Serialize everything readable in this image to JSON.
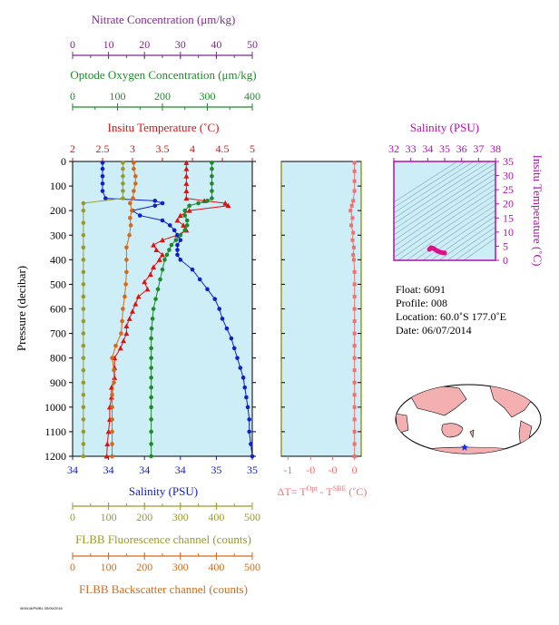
{
  "colors": {
    "plot_bg": "#cdeef7",
    "nitrate": "#7a2a8a",
    "oxygen": "#1e8a2a",
    "temperature": "#e01010",
    "salinity": "#1020c8",
    "fluorescence": "#9a9a2a",
    "backscatter": "#d26a1a",
    "delta_t": "#f07070",
    "ts_salinity": "#b010b0",
    "ts_points": "#e0108a",
    "map_land": "#f4b0b0",
    "map_ocean": "#ffffff",
    "float_marker": "#1030e0"
  },
  "labels": {
    "nitrate_axis": "Nitrate Concentration (μm/kg)",
    "oxygen_axis": "Optode Oxygen Concentration (μm/kg)",
    "temp_axis": "Insitu Temperature (˚C)",
    "salinity_axis": "Salinity (PSU)",
    "fluor_axis": "FLBB Fluorescence channel (counts)",
    "backscatter_axis": "FLBB Backscatter channel (counts)",
    "pressure_axis": "Pressure (decibar)",
    "delta_t_main": "ΔT= T",
    "delta_t_sup1": "Opt",
    "delta_t_mid": " - T",
    "delta_t_sup2": "SBE",
    "delta_t_unit": " (˚C)",
    "ts_salinity_axis": "Salinity (PSU)",
    "ts_temp_axis": "Insitu Temperature (˚C)"
  },
  "info": {
    "float": "Float:  6091",
    "profile": "Profile:  008",
    "location": "Location:  60.0˚S  177.0˚E",
    "date": "Date:  06/07/2014"
  },
  "footer": "/6091/8/PWBL 05/09/2016",
  "chart_data": [
    {
      "type": "line",
      "name": "main-profile",
      "y_axis": {
        "label": "Pressure (decibar)",
        "range": [
          1200,
          0
        ],
        "ticks": [
          0,
          100,
          200,
          300,
          400,
          500,
          600,
          700,
          800,
          900,
          1000,
          1100,
          1200
        ]
      },
      "axes": {
        "nitrate": {
          "range": [
            0,
            50
          ],
          "ticks": [
            "0",
            "10",
            "20",
            "30",
            "40",
            "50"
          ]
        },
        "oxygen": {
          "range": [
            0,
            400
          ],
          "ticks": [
            "0",
            "100",
            "200",
            "300",
            "400"
          ]
        },
        "temperature": {
          "range": [
            2,
            5
          ],
          "ticks": [
            "2",
            "2.5",
            "3",
            "3.5",
            "4",
            "4.5",
            "5"
          ]
        },
        "salinity": {
          "range": [
            33.9,
            35.1
          ],
          "ticks": [
            "34",
            "34",
            "34",
            "34",
            "35",
            "35"
          ]
        },
        "fluorescence": {
          "range": [
            0,
            500
          ],
          "ticks": [
            "0",
            "100",
            "200",
            "300",
            "400",
            "500"
          ]
        },
        "backscatter": {
          "range": [
            0,
            500
          ],
          "ticks": [
            "0",
            "100",
            "200",
            "300",
            "400",
            "500"
          ]
        }
      },
      "series": [
        {
          "key": "temperature",
          "pressure": [
            5,
            30,
            60,
            90,
            120,
            150,
            160,
            170,
            180,
            200,
            220,
            240,
            260,
            280,
            300,
            320,
            340,
            360,
            380,
            400,
            430,
            460,
            490,
            520,
            550,
            580,
            610,
            640,
            670,
            700,
            730,
            760,
            800,
            840,
            880,
            920,
            960,
            1000,
            1050,
            1100,
            1150,
            1200
          ],
          "values": [
            3.9,
            3.9,
            3.9,
            3.9,
            3.9,
            3.9,
            4.2,
            4.55,
            4.6,
            3.95,
            3.8,
            3.75,
            3.85,
            3.9,
            3.75,
            3.5,
            3.35,
            3.4,
            3.5,
            3.45,
            3.35,
            3.3,
            3.2,
            3.25,
            3.1,
            3.05,
            3.0,
            2.95,
            2.9,
            2.9,
            2.85,
            2.8,
            2.7,
            2.7,
            2.7,
            2.65,
            2.65,
            2.62,
            2.62,
            2.6,
            2.58,
            2.57
          ]
        },
        {
          "key": "salinity",
          "pressure": [
            5,
            30,
            60,
            90,
            120,
            150,
            160,
            170,
            180,
            200,
            220,
            240,
            260,
            280,
            300,
            320,
            340,
            360,
            380,
            400,
            440,
            480,
            520,
            560,
            600,
            640,
            680,
            720,
            760,
            800,
            840,
            880,
            920,
            960,
            1000,
            1050,
            1100,
            1150,
            1200
          ],
          "values": [
            34.1,
            34.1,
            34.1,
            34.1,
            34.1,
            34.12,
            34.45,
            34.5,
            34.45,
            34.3,
            34.35,
            34.5,
            34.55,
            34.58,
            34.6,
            34.62,
            34.6,
            34.6,
            34.6,
            34.62,
            34.7,
            34.75,
            34.8,
            34.85,
            34.88,
            34.9,
            34.93,
            34.96,
            34.98,
            35.0,
            35.02,
            35.04,
            35.05,
            35.06,
            35.07,
            35.08,
            35.08,
            35.09,
            35.1
          ]
        },
        {
          "key": "oxygen",
          "pressure": [
            5,
            30,
            60,
            90,
            120,
            150,
            160,
            170,
            180,
            200,
            220,
            240,
            260,
            280,
            300,
            320,
            340,
            360,
            380,
            400,
            440,
            480,
            520,
            560,
            600,
            640,
            680,
            720,
            760,
            800,
            840,
            880,
            920,
            960,
            1000,
            1050,
            1100,
            1150,
            1200
          ],
          "values": [
            310,
            310,
            310,
            310,
            310,
            310,
            300,
            280,
            260,
            250,
            250,
            255,
            255,
            250,
            240,
            230,
            220,
            215,
            210,
            205,
            200,
            195,
            190,
            185,
            180,
            178,
            176,
            175,
            175,
            175,
            175,
            175,
            175,
            175,
            175,
            175,
            175,
            175,
            175
          ]
        },
        {
          "key": "fluorescence",
          "pressure": [
            5,
            30,
            60,
            90,
            120,
            150,
            170,
            200,
            250,
            300,
            350,
            400,
            450,
            500,
            550,
            600,
            650,
            700,
            750,
            800,
            850,
            900,
            950,
            1000,
            1050,
            1100,
            1150,
            1200
          ],
          "values": [
            140,
            140,
            140,
            140,
            140,
            140,
            30,
            30,
            30,
            30,
            30,
            30,
            30,
            30,
            30,
            30,
            30,
            30,
            30,
            30,
            30,
            30,
            30,
            30,
            30,
            30,
            30,
            30
          ]
        },
        {
          "key": "backscatter",
          "pressure": [
            5,
            30,
            60,
            90,
            120,
            150,
            170,
            200,
            230,
            260,
            300,
            350,
            400,
            450,
            500,
            550,
            600,
            650,
            700,
            750,
            800,
            850,
            900,
            950,
            1000,
            1050,
            1100,
            1150,
            1200
          ],
          "values": [
            170,
            170,
            175,
            175,
            170,
            168,
            160,
            165,
            160,
            162,
            158,
            150,
            150,
            150,
            148,
            145,
            140,
            138,
            135,
            120,
            110,
            115,
            115,
            110,
            110,
            110,
            110,
            110,
            110
          ]
        }
      ]
    },
    {
      "type": "line",
      "name": "delta-t",
      "x_axis": {
        "label": "ΔT= TOpt - TSBE (˚C)",
        "range": [
          -1.1,
          0.1
        ],
        "ticks": [
          "-1",
          "-0",
          "-0",
          "0"
        ]
      },
      "y_axis": {
        "range": [
          1200,
          0
        ]
      },
      "series": [
        {
          "key": "delta_t",
          "pressure": [
            5,
            40,
            80,
            120,
            160,
            180,
            200,
            230,
            260,
            290,
            320,
            350,
            380,
            400,
            450,
            500,
            550,
            600,
            650,
            700,
            750,
            800,
            850,
            900,
            950,
            1000,
            1050,
            1100,
            1150,
            1200
          ],
          "values": [
            0,
            0,
            0,
            0,
            -0.02,
            -0.04,
            -0.06,
            -0.03,
            -0.05,
            -0.02,
            -0.03,
            -0.01,
            -0.02,
            -0.01,
            0,
            0,
            0,
            0,
            0,
            0,
            0,
            0,
            0,
            0,
            0,
            0,
            0,
            0,
            0,
            0
          ]
        }
      ]
    },
    {
      "type": "scatter",
      "name": "ts-diagram",
      "x_axis": {
        "label": "Salinity (PSU)",
        "range": [
          32,
          38
        ],
        "ticks": [
          "32",
          "33",
          "34",
          "35",
          "36",
          "37",
          "38"
        ]
      },
      "y_axis": {
        "label": "Insitu Temperature (˚C)",
        "range": [
          0,
          35
        ],
        "ticks": [
          "0",
          "5",
          "10",
          "15",
          "20",
          "25",
          "30",
          "35"
        ]
      },
      "series": [
        {
          "key": "ts",
          "salinity": [
            34.1,
            34.15,
            34.2,
            34.3,
            34.4,
            34.5,
            34.55,
            34.6,
            34.7,
            34.8,
            34.9,
            35.0
          ],
          "temperature": [
            3.9,
            4.2,
            4.5,
            4.3,
            4.0,
            3.6,
            3.4,
            3.2,
            3.0,
            2.8,
            2.7,
            2.6
          ]
        }
      ]
    }
  ]
}
